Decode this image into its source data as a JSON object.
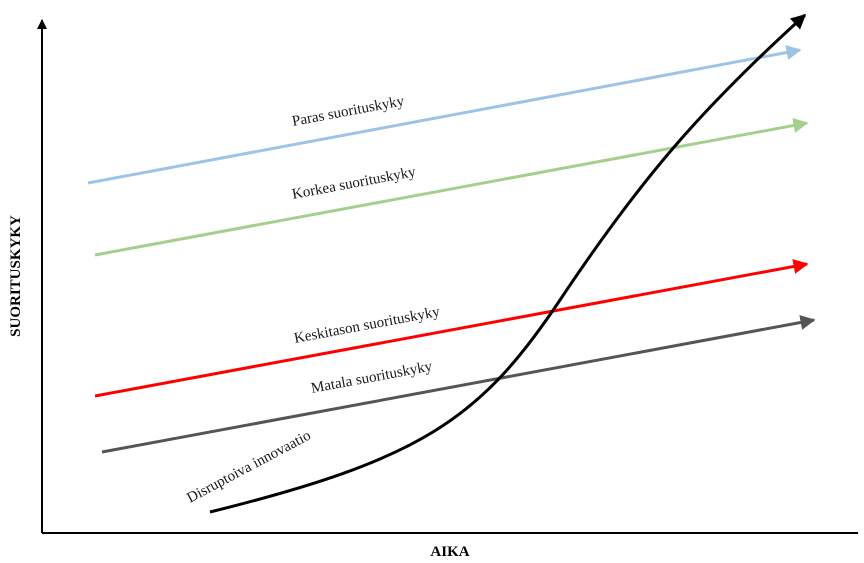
{
  "axes": {
    "x_title": "AIKA",
    "y_title": "SUORITUSKYKY"
  },
  "lines": [
    {
      "id": "paras",
      "label": "Paras suorituskyky",
      "color": "#9fc3e4"
    },
    {
      "id": "korkea",
      "label": "Korkea suorituskyky",
      "color": "#a5cf8e"
    },
    {
      "id": "keskitaso",
      "label": "Keskitason suorituskyky",
      "color": "#ff0000"
    },
    {
      "id": "matala",
      "label": "Matala suorituskyky",
      "color": "#555555"
    }
  ],
  "disruptive": {
    "label": "Disruptoiva innovaatio",
    "color": "#000000"
  }
}
